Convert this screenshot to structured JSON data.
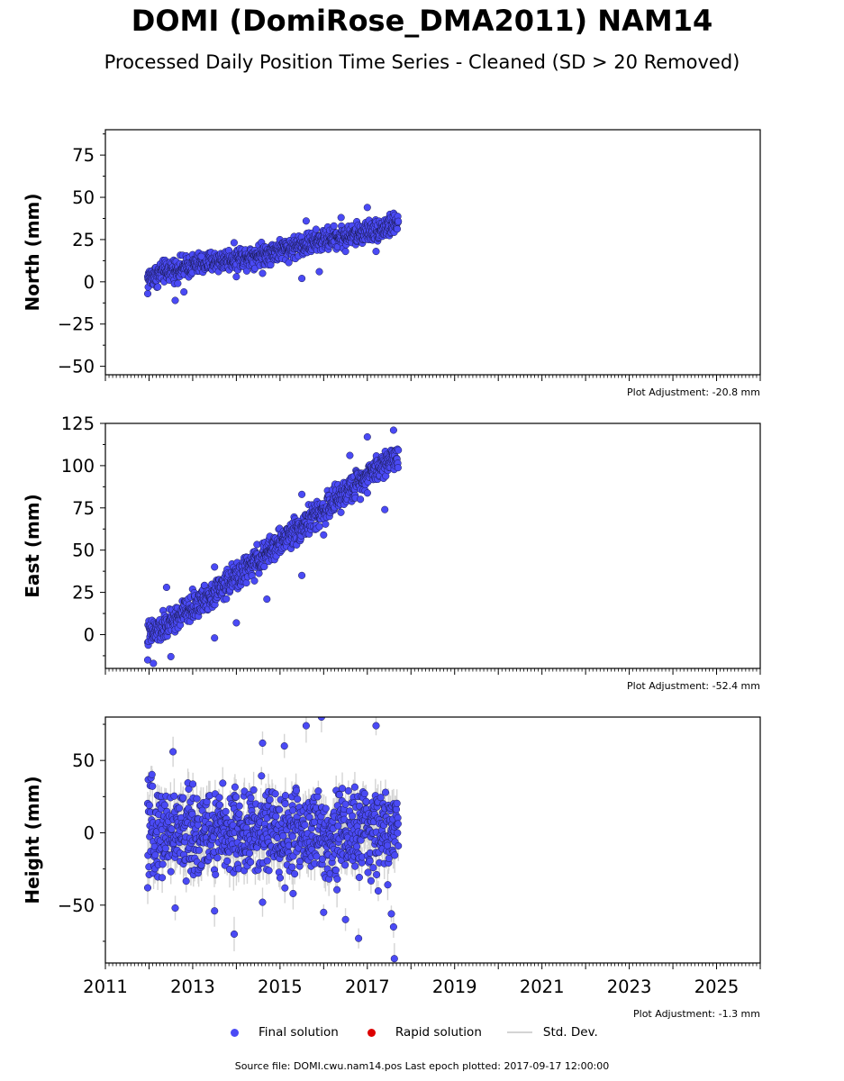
{
  "header": {
    "title": "DOMI (DomiRose_DMA2011) NAM14",
    "subtitle": "Processed Daily Position Time Series - Cleaned (SD > 20 Removed)"
  },
  "legend": {
    "final_label": "Final solution",
    "rapid_label": "Rapid solution",
    "std_label": "Std. Dev."
  },
  "footer": {
    "source": "Source file: DOMI.cwu.nam14.pos  Last epoch plotted: 2017-09-17 12:00:00"
  },
  "colors": {
    "final": "#4a4af5",
    "rapid": "#dd0000",
    "errorbar": "#d4d4d4"
  },
  "chart_data": [
    {
      "type": "scatter",
      "ylabel": "North (mm)",
      "adjustment": "Plot Adjustment: -20.8 mm",
      "xlim": [
        2011,
        2026
      ],
      "ylim": [
        -55,
        90
      ],
      "yticks": [
        -50,
        -25,
        0,
        25,
        50,
        75
      ],
      "ytick_labels": [
        "−50",
        "−25",
        "0",
        "25",
        "50",
        "75"
      ],
      "show_xtick_labels": false,
      "series": [
        {
          "x": [
            2011.97,
            2012.25,
            2012.5,
            2012.75,
            2013.0,
            2013.25,
            2013.5,
            2013.75,
            2014.0,
            2014.25,
            2014.5,
            2014.75,
            2015.0,
            2015.25,
            2015.5,
            2015.75,
            2016.0,
            2016.25,
            2016.5,
            2016.75,
            2017.0,
            2017.25,
            2017.5,
            2017.71
          ],
          "y": [
            2,
            5,
            7,
            8,
            10,
            11,
            12,
            13,
            14,
            15,
            16,
            17,
            19,
            20,
            22,
            23,
            25,
            26,
            27,
            28,
            30,
            31,
            33,
            35
          ]
        }
      ],
      "outliers": [
        {
          "x": 2011.97,
          "y": -7
        },
        {
          "x": 2012.6,
          "y": -11
        },
        {
          "x": 2012.2,
          "y": -3
        },
        {
          "x": 2012.8,
          "y": -6
        },
        {
          "x": 2013.2,
          "y": 15
        },
        {
          "x": 2014.0,
          "y": 3
        },
        {
          "x": 2014.6,
          "y": 5
        },
        {
          "x": 2015.5,
          "y": 2
        },
        {
          "x": 2015.9,
          "y": 6
        },
        {
          "x": 2017.0,
          "y": 44
        },
        {
          "x": 2016.4,
          "y": 38
        },
        {
          "x": 2016.5,
          "y": 18
        },
        {
          "x": 2017.2,
          "y": 18
        },
        {
          "x": 2015.6,
          "y": 36
        }
      ]
    },
    {
      "type": "scatter",
      "ylabel": "East (mm)",
      "adjustment": "Plot Adjustment: -52.4 mm",
      "xlim": [
        2011,
        2026
      ],
      "ylim": [
        -20,
        125
      ],
      "yticks": [
        0,
        25,
        50,
        75,
        100,
        125
      ],
      "ytick_labels": [
        "0",
        "25",
        "50",
        "75",
        "100",
        "125"
      ],
      "show_xtick_labels": false,
      "series": [
        {
          "x": [
            2011.97,
            2012.25,
            2012.5,
            2012.75,
            2013.0,
            2013.25,
            2013.5,
            2013.75,
            2014.0,
            2014.25,
            2014.5,
            2014.75,
            2015.0,
            2015.25,
            2015.5,
            2015.75,
            2016.0,
            2016.25,
            2016.5,
            2016.75,
            2017.0,
            2017.25,
            2017.5,
            2017.71
          ],
          "y": [
            0,
            3,
            7,
            12,
            16,
            21,
            25,
            30,
            34,
            39,
            44,
            49,
            55,
            60,
            64,
            69,
            74,
            79,
            84,
            89,
            95,
            99,
            103,
            106
          ]
        }
      ],
      "outliers": [
        {
          "x": 2011.97,
          "y": -15
        },
        {
          "x": 2012.1,
          "y": -17
        },
        {
          "x": 2012.5,
          "y": -13
        },
        {
          "x": 2012.4,
          "y": 28
        },
        {
          "x": 2013.5,
          "y": -2
        },
        {
          "x": 2014.0,
          "y": 7
        },
        {
          "x": 2013.5,
          "y": 40
        },
        {
          "x": 2014.7,
          "y": 21
        },
        {
          "x": 2016.0,
          "y": 59
        },
        {
          "x": 2015.5,
          "y": 35
        },
        {
          "x": 2017.0,
          "y": 117
        },
        {
          "x": 2017.6,
          "y": 121
        },
        {
          "x": 2017.4,
          "y": 74
        },
        {
          "x": 2016.6,
          "y": 106
        },
        {
          "x": 2015.5,
          "y": 83
        }
      ]
    },
    {
      "type": "scatter",
      "ylabel": "Height (mm)",
      "adjustment": "Plot Adjustment: -1.3 mm",
      "xlim": [
        2011,
        2026
      ],
      "ylim": [
        -90,
        80
      ],
      "yticks": [
        -50,
        0,
        50
      ],
      "ytick_labels": [
        "−50",
        "0",
        "50"
      ],
      "show_xtick_labels": true,
      "xticks": [
        2011,
        2013,
        2015,
        2017,
        2019,
        2021,
        2023,
        2025
      ],
      "xtick_labels": [
        "2011",
        "2013",
        "2015",
        "2017",
        "2019",
        "2021",
        "2023",
        "2025"
      ],
      "series": [
        {
          "x": [
            2011.97,
            2012.25,
            2012.5,
            2012.75,
            2013.0,
            2013.25,
            2013.5,
            2013.75,
            2014.0,
            2014.25,
            2014.5,
            2014.75,
            2015.0,
            2015.25,
            2015.5,
            2015.75,
            2016.0,
            2016.25,
            2016.5,
            2016.75,
            2017.0,
            2017.25,
            2017.5,
            2017.71
          ],
          "y": [
            0,
            2,
            0,
            -1,
            1,
            0,
            -2,
            0,
            1,
            -1,
            0,
            2,
            0,
            -1,
            1,
            0,
            -2,
            -1,
            0,
            1,
            -1,
            0,
            0,
            1
          ]
        }
      ],
      "outliers": [
        {
          "x": 2012.55,
          "y": 56
        },
        {
          "x": 2012.6,
          "y": -52
        },
        {
          "x": 2013.5,
          "y": -54
        },
        {
          "x": 2013.95,
          "y": -70
        },
        {
          "x": 2014.6,
          "y": 62
        },
        {
          "x": 2015.1,
          "y": 60
        },
        {
          "x": 2015.6,
          "y": 74
        },
        {
          "x": 2015.95,
          "y": 80
        },
        {
          "x": 2017.2,
          "y": 74
        },
        {
          "x": 2016.8,
          "y": -73
        },
        {
          "x": 2017.62,
          "y": -87
        },
        {
          "x": 2017.6,
          "y": -65
        },
        {
          "x": 2016.0,
          "y": -55
        },
        {
          "x": 2016.5,
          "y": -60
        },
        {
          "x": 2011.97,
          "y": -38
        },
        {
          "x": 2014.6,
          "y": -48
        },
        {
          "x": 2015.3,
          "y": -42
        },
        {
          "x": 2017.55,
          "y": -56
        }
      ]
    }
  ]
}
